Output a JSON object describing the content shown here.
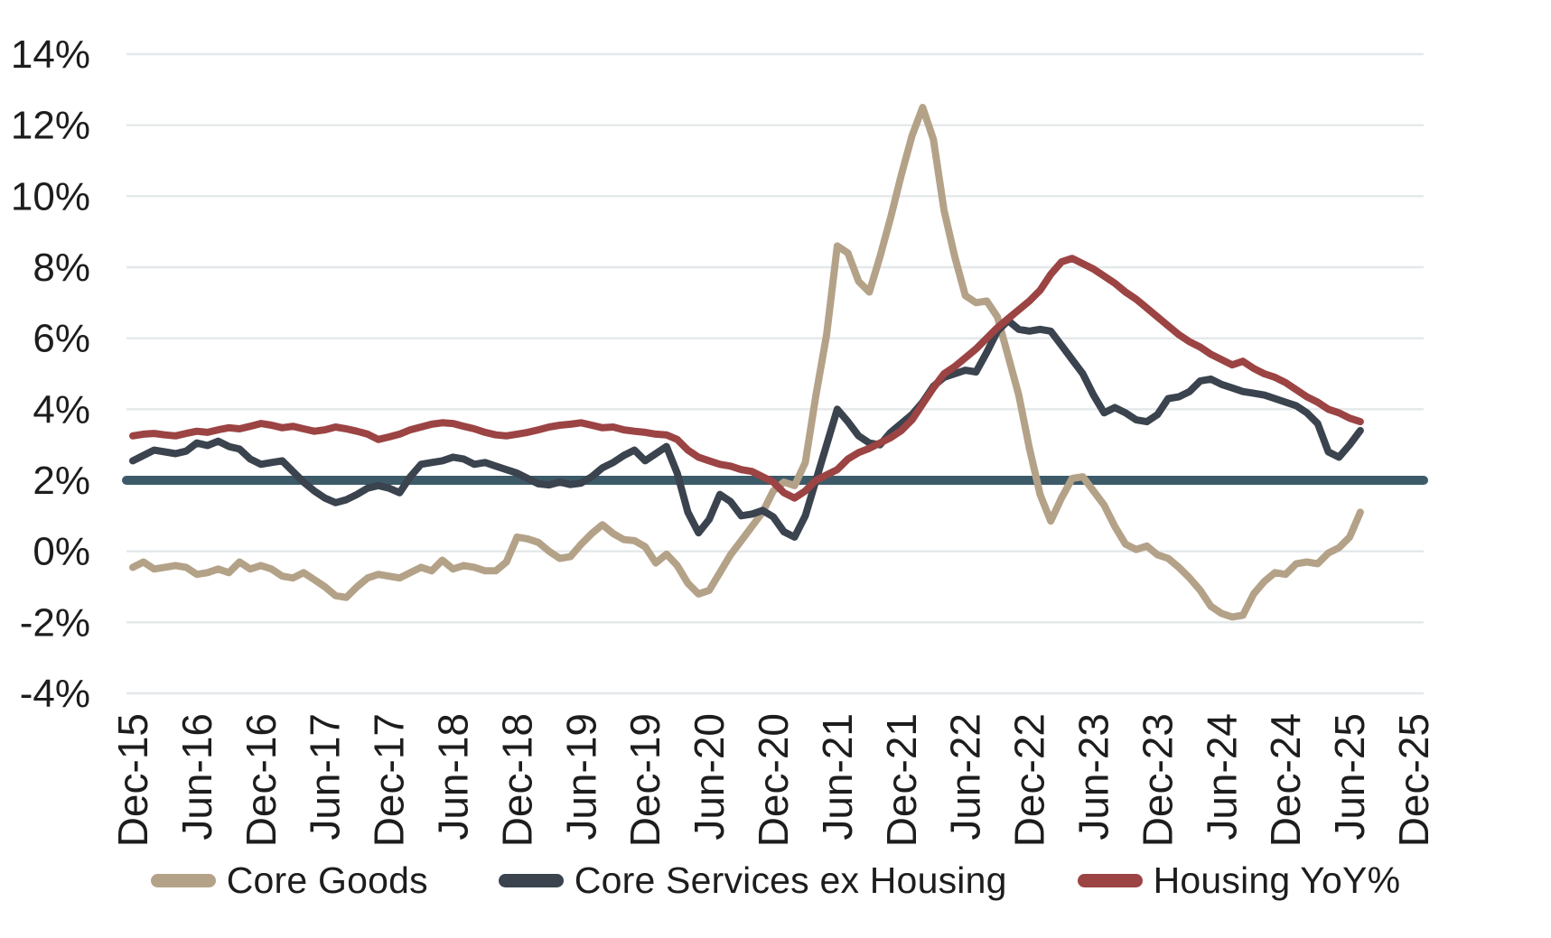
{
  "chart_data": {
    "type": "line",
    "title": "",
    "grid": true,
    "legend_position": "bottom",
    "y_axis": {
      "min": -4,
      "max": 14,
      "step": 2,
      "format": "percent"
    },
    "y_tick_labels": [
      "14%",
      "12%",
      "10%",
      "8%",
      "6%",
      "4%",
      "2%",
      "0%",
      "-2%",
      "-4%"
    ],
    "x_tick_labels": [
      "Dec-15",
      "Jun-16",
      "Dec-16",
      "Jun-17",
      "Dec-17",
      "Jun-18",
      "Dec-18",
      "Jun-19",
      "Dec-19",
      "Jun-20",
      "Dec-20",
      "Jun-21",
      "Dec-21",
      "Jun-22",
      "Dec-22",
      "Jun-23",
      "Dec-23",
      "Jun-24",
      "Dec-24",
      "Jun-25",
      "Dec-25"
    ],
    "months": [
      "Dec-15",
      "Jan-16",
      "Feb-16",
      "Mar-16",
      "Apr-16",
      "May-16",
      "Jun-16",
      "Jul-16",
      "Aug-16",
      "Sep-16",
      "Oct-16",
      "Nov-16",
      "Dec-16",
      "Jan-17",
      "Feb-17",
      "Mar-17",
      "Apr-17",
      "May-17",
      "Jun-17",
      "Jul-17",
      "Aug-17",
      "Sep-17",
      "Oct-17",
      "Nov-17",
      "Dec-17",
      "Jan-18",
      "Feb-18",
      "Mar-18",
      "Apr-18",
      "May-18",
      "Jun-18",
      "Jul-18",
      "Aug-18",
      "Sep-18",
      "Oct-18",
      "Nov-18",
      "Dec-18",
      "Jan-19",
      "Feb-19",
      "Mar-19",
      "Apr-19",
      "May-19",
      "Jun-19",
      "Jul-19",
      "Aug-19",
      "Sep-19",
      "Oct-19",
      "Nov-19",
      "Dec-19",
      "Jan-20",
      "Feb-20",
      "Mar-20",
      "Apr-20",
      "May-20",
      "Jun-20",
      "Jul-20",
      "Aug-20",
      "Sep-20",
      "Oct-20",
      "Nov-20",
      "Dec-20",
      "Jan-21",
      "Feb-21",
      "Mar-21",
      "Apr-21",
      "May-21",
      "Jun-21",
      "Jul-21",
      "Aug-21",
      "Sep-21",
      "Oct-21",
      "Nov-21",
      "Dec-21",
      "Jan-22",
      "Feb-22",
      "Mar-22",
      "Apr-22",
      "May-22",
      "Jun-22",
      "Jul-22",
      "Aug-22",
      "Sep-22",
      "Oct-22",
      "Nov-22",
      "Dec-22",
      "Jan-23",
      "Feb-23",
      "Mar-23",
      "Apr-23",
      "May-23",
      "Jun-23",
      "Jul-23",
      "Aug-23",
      "Sep-23",
      "Oct-23",
      "Nov-23",
      "Dec-23",
      "Jan-24",
      "Feb-24",
      "Mar-24",
      "Apr-24",
      "May-24",
      "Jun-24",
      "Jul-24",
      "Aug-24",
      "Sep-24",
      "Oct-24",
      "Nov-24",
      "Dec-24",
      "Jan-25",
      "Feb-25",
      "Mar-25",
      "Apr-25",
      "May-25",
      "Jun-25",
      "Jul-25"
    ],
    "reference_line": {
      "value": 2,
      "color": "#3d5a69"
    },
    "series": [
      {
        "name": "Core Goods",
        "color": "#b4a288",
        "values": [
          -0.45,
          -0.3,
          -0.5,
          -0.45,
          -0.4,
          -0.45,
          -0.65,
          -0.6,
          -0.5,
          -0.6,
          -0.3,
          -0.5,
          -0.4,
          -0.5,
          -0.7,
          -0.75,
          -0.6,
          -0.8,
          -1.0,
          -1.25,
          -1.3,
          -1.0,
          -0.75,
          -0.65,
          -0.7,
          -0.75,
          -0.6,
          -0.45,
          -0.55,
          -0.25,
          -0.5,
          -0.4,
          -0.45,
          -0.55,
          -0.55,
          -0.3,
          0.4,
          0.35,
          0.25,
          0.0,
          -0.2,
          -0.15,
          0.2,
          0.5,
          0.75,
          0.5,
          0.33,
          0.3,
          0.13,
          -0.33,
          -0.08,
          -0.4,
          -0.9,
          -1.2,
          -1.1,
          -0.6,
          -0.1,
          0.3,
          0.7,
          1.1,
          1.7,
          1.95,
          1.85,
          2.5,
          4.4,
          6.1,
          8.6,
          8.4,
          7.6,
          7.3,
          8.3,
          9.4,
          10.6,
          11.7,
          12.5,
          11.6,
          9.6,
          8.3,
          7.2,
          7.0,
          7.05,
          6.6,
          5.5,
          4.4,
          2.9,
          1.6,
          0.85,
          1.5,
          2.05,
          2.1,
          1.7,
          1.3,
          0.7,
          0.2,
          0.05,
          0.15,
          -0.1,
          -0.2,
          -0.45,
          -0.75,
          -1.1,
          -1.55,
          -1.75,
          -1.85,
          -1.8,
          -1.2,
          -0.85,
          -0.6,
          -0.65,
          -0.35,
          -0.3,
          -0.35,
          -0.05,
          0.1,
          0.4,
          1.1
        ]
      },
      {
        "name": "Core Services ex Housing",
        "color": "#3a434e",
        "values": [
          2.55,
          2.7,
          2.85,
          2.8,
          2.75,
          2.82,
          3.05,
          2.98,
          3.1,
          2.95,
          2.88,
          2.6,
          2.45,
          2.5,
          2.55,
          2.25,
          1.95,
          1.7,
          1.5,
          1.37,
          1.45,
          1.6,
          1.78,
          1.85,
          1.78,
          1.65,
          2.1,
          2.45,
          2.5,
          2.55,
          2.65,
          2.6,
          2.45,
          2.5,
          2.4,
          2.3,
          2.2,
          2.05,
          1.9,
          1.87,
          1.95,
          1.88,
          1.92,
          2.1,
          2.35,
          2.5,
          2.7,
          2.85,
          2.55,
          2.75,
          2.95,
          2.2,
          1.1,
          0.52,
          0.9,
          1.6,
          1.4,
          1.0,
          1.05,
          1.15,
          0.97,
          0.55,
          0.4,
          1.0,
          2.0,
          3.0,
          4.0,
          3.65,
          3.25,
          3.05,
          3.0,
          3.35,
          3.6,
          3.85,
          4.2,
          4.65,
          4.9,
          5.0,
          5.1,
          5.05,
          5.6,
          6.2,
          6.5,
          6.25,
          6.2,
          6.25,
          6.2,
          5.8,
          5.4,
          5.0,
          4.4,
          3.9,
          4.05,
          3.9,
          3.7,
          3.65,
          3.85,
          4.3,
          4.35,
          4.5,
          4.8,
          4.85,
          4.7,
          4.6,
          4.5,
          4.45,
          4.4,
          4.3,
          4.2,
          4.1,
          3.9,
          3.6,
          2.8,
          2.65,
          3.0,
          3.4
        ]
      },
      {
        "name": "Housing YoY%",
        "color": "#9c4343",
        "values": [
          3.25,
          3.3,
          3.32,
          3.28,
          3.25,
          3.32,
          3.38,
          3.35,
          3.42,
          3.48,
          3.45,
          3.52,
          3.6,
          3.55,
          3.48,
          3.52,
          3.45,
          3.38,
          3.42,
          3.5,
          3.45,
          3.38,
          3.3,
          3.15,
          3.22,
          3.3,
          3.42,
          3.5,
          3.58,
          3.62,
          3.6,
          3.52,
          3.45,
          3.35,
          3.28,
          3.25,
          3.3,
          3.35,
          3.42,
          3.5,
          3.55,
          3.58,
          3.62,
          3.55,
          3.48,
          3.5,
          3.42,
          3.38,
          3.35,
          3.3,
          3.28,
          3.15,
          2.85,
          2.65,
          2.55,
          2.45,
          2.4,
          2.3,
          2.25,
          2.1,
          1.95,
          1.65,
          1.5,
          1.7,
          2.0,
          2.15,
          2.3,
          2.6,
          2.78,
          2.9,
          3.05,
          3.2,
          3.4,
          3.7,
          4.15,
          4.6,
          5.0,
          5.2,
          5.45,
          5.7,
          6.0,
          6.3,
          6.55,
          6.8,
          7.05,
          7.35,
          7.8,
          8.15,
          8.25,
          8.1,
          7.95,
          7.75,
          7.55,
          7.3,
          7.1,
          6.85,
          6.6,
          6.35,
          6.1,
          5.9,
          5.75,
          5.55,
          5.4,
          5.25,
          5.35,
          5.15,
          5.0,
          4.9,
          4.75,
          4.55,
          4.35,
          4.2,
          4.0,
          3.9,
          3.75,
          3.65
        ]
      }
    ],
    "style": {
      "gridline_color": "#e4e8ea",
      "axis_text_color": "#1d1d1d",
      "background": "#ffffff",
      "series_stroke_width": 8,
      "reference_stroke_width": 10
    }
  }
}
